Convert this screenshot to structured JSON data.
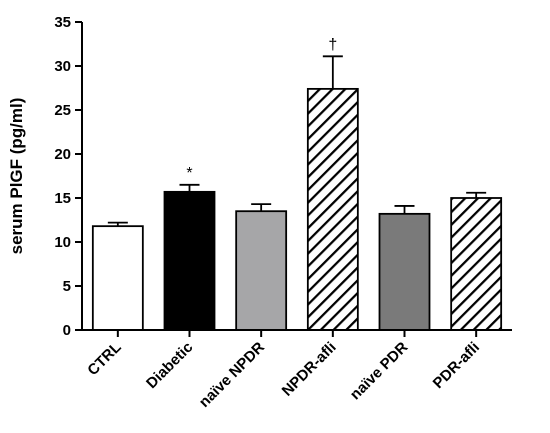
{
  "chart_data": {
    "type": "bar",
    "title": "",
    "xlabel": "",
    "ylabel": "serum PlGF (pg/ml)",
    "ylim": [
      0,
      35
    ],
    "yticks": [
      0,
      5,
      10,
      15,
      20,
      25,
      30,
      35
    ],
    "grid": false,
    "legend": "none",
    "categories": [
      "CTRL",
      "Diabetic",
      "naïve NPDR",
      "NPDR-afli",
      "naïve PDR",
      "PDR-afli"
    ],
    "values": [
      11.8,
      15.7,
      13.5,
      27.4,
      13.2,
      15.0
    ],
    "errors": [
      0.4,
      0.8,
      0.8,
      3.7,
      0.9,
      0.6
    ],
    "annotations": [
      "",
      "*",
      "",
      "†",
      "",
      ""
    ],
    "fills": [
      "#ffffff",
      "#000000",
      "#a6a6a8",
      "hatch",
      "#7a7a7a",
      "hatch"
    ]
  }
}
